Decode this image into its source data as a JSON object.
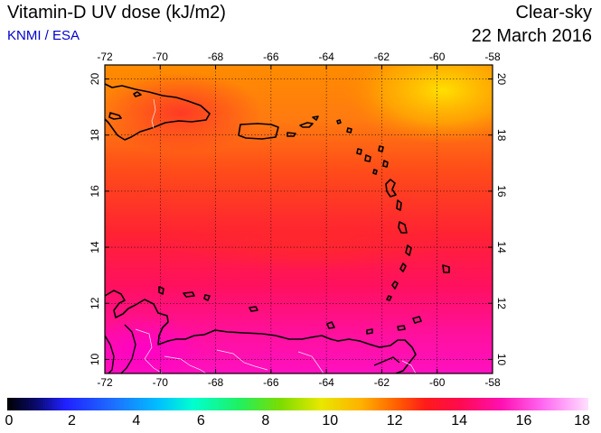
{
  "header": {
    "title": "Vitamin-D UV dose (kJ/m2)",
    "source": "KNMI / ESA",
    "sky": "Clear-sky",
    "date": "22 March 2016"
  },
  "map": {
    "lon_ticks": [
      "-72",
      "-70",
      "-68",
      "-66",
      "-64",
      "-62",
      "-60",
      "-58"
    ],
    "lat_ticks": [
      "10",
      "12",
      "14",
      "16",
      "18",
      "20"
    ],
    "lon_range": [
      -72,
      -58
    ],
    "lat_range": [
      9.5,
      20.5
    ],
    "grid": true,
    "coastline_color": "#000000",
    "border_color": "#ffffff"
  },
  "colorbar": {
    "labels": [
      "0",
      "2",
      "4",
      "6",
      "8",
      "10",
      "12",
      "14",
      "16",
      "18"
    ],
    "range": [
      0,
      18
    ]
  }
}
